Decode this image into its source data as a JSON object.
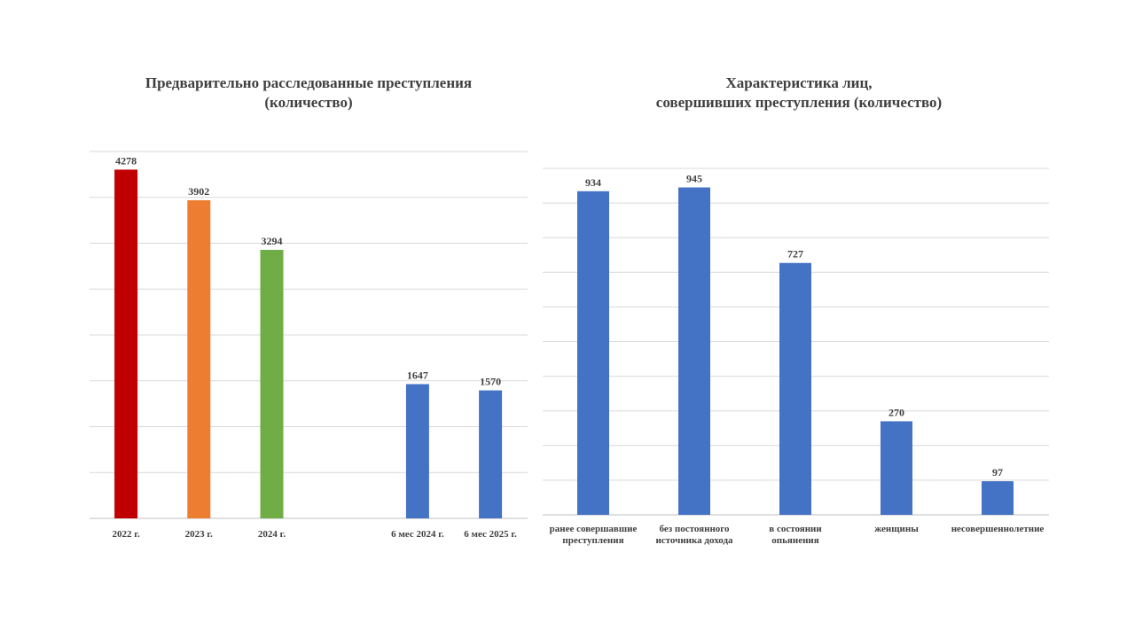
{
  "chart_data": [
    {
      "type": "bar",
      "title_lines": [
        "Предварительно расследованные преступления",
        "(количество)"
      ],
      "categories": [
        "2022 г.",
        "2023 г.",
        "2024 г.",
        "",
        "6 мес 2024 г.",
        "6 мес 2025 г."
      ],
      "values": [
        4278,
        3902,
        3294,
        null,
        1647,
        1570
      ],
      "colors": [
        "#c00000",
        "#ed7d31",
        "#70ad47",
        null,
        "#4472c4",
        "#4472c4"
      ],
      "ylim": [
        0,
        4500
      ],
      "grid": true,
      "legend": "none"
    },
    {
      "type": "bar",
      "title_lines": [
        "Характеристика лиц,",
        "совершивших преступления (количество)"
      ],
      "categories": [
        [
          "ранее совершавшие",
          "преступления"
        ],
        [
          "без постоянного",
          "источника дохода"
        ],
        [
          "в состоянии",
          "опьянения"
        ],
        [
          "женщины"
        ],
        [
          "несовершеннолетние"
        ]
      ],
      "values": [
        934,
        945,
        727,
        270,
        97
      ],
      "colors": [
        "#4472c4",
        "#4472c4",
        "#4472c4",
        "#4472c4",
        "#4472c4"
      ],
      "ylim": [
        0,
        1000
      ],
      "grid": true,
      "legend": "none"
    }
  ]
}
